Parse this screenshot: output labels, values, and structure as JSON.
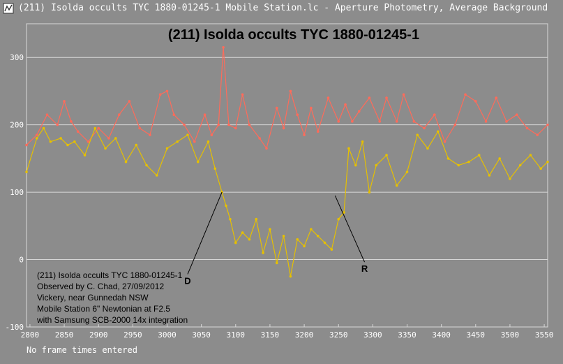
{
  "window": {
    "title": "(211) Isolda occults TYC 1880-01245-1 Mobile Station.lc - Aperture Photometry, Average Background",
    "icon": "lightcurve-app-icon"
  },
  "footer": {
    "status": "No frame times entered"
  },
  "colors": {
    "background": "#8c8c8c",
    "grid": "#d8d8d8",
    "target": "#e6c000",
    "comparison": "#ff6b5a",
    "comparison_clipped": "#b0b0b0",
    "text": "#000000",
    "axis_text": "#ffffff"
  },
  "chart_data": {
    "type": "line",
    "title": "(211) Isolda occults TYC 1880-01245-1",
    "xlabel": "",
    "ylabel": "",
    "xlim": [
      2795,
      3555
    ],
    "ylim": [
      -100,
      350
    ],
    "x_ticks": [
      2800,
      2850,
      2900,
      2950,
      3000,
      3050,
      3100,
      3150,
      3200,
      3250,
      3300,
      3350,
      3400,
      3450,
      3500,
      3550
    ],
    "y_ticks": [
      -100,
      0,
      100,
      200,
      300
    ],
    "grid": true,
    "series": [
      {
        "key": "comparison",
        "color": "#ff6b5a",
        "segments": [
          [
            2795,
            170
          ],
          [
            2810,
            185
          ],
          [
            2825,
            215
          ],
          [
            2840,
            200
          ],
          [
            2850,
            235
          ],
          [
            2860,
            205
          ],
          [
            2870,
            190
          ],
          [
            2885,
            175
          ],
          [
            2900,
            195
          ],
          [
            2915,
            180
          ],
          [
            2930,
            215
          ],
          [
            2945,
            235
          ],
          [
            2960,
            195
          ],
          [
            2975,
            185
          ],
          [
            2990,
            245
          ],
          [
            3000,
            250
          ],
          [
            3010,
            215
          ],
          [
            3025,
            200
          ],
          [
            3040,
            175
          ],
          [
            3055,
            215
          ],
          [
            3065,
            185
          ],
          [
            3075,
            200
          ],
          [
            3082,
            315
          ],
          [
            3090,
            200
          ],
          [
            3100,
            195
          ],
          [
            3110,
            245
          ],
          [
            3120,
            200
          ],
          [
            3135,
            180
          ],
          [
            3145,
            165
          ],
          [
            3160,
            225
          ],
          [
            3170,
            195
          ],
          [
            3180,
            250
          ],
          [
            3190,
            215
          ],
          [
            3200,
            185
          ],
          [
            3210,
            225
          ],
          [
            3220,
            190
          ],
          [
            3235,
            240
          ],
          [
            3250,
            205
          ],
          [
            3260,
            230
          ],
          [
            3270,
            205
          ],
          [
            3280,
            220
          ],
          [
            3295,
            240
          ],
          [
            3310,
            205
          ],
          [
            3320,
            240
          ],
          [
            3335,
            205
          ],
          [
            3345,
            245
          ],
          [
            3360,
            205
          ],
          [
            3375,
            195
          ],
          [
            3390,
            215
          ],
          [
            3405,
            175
          ],
          [
            3420,
            200
          ],
          [
            3435,
            245
          ],
          [
            3450,
            235
          ],
          [
            3465,
            205
          ],
          [
            3480,
            240
          ],
          [
            3495,
            205
          ],
          [
            3510,
            215
          ],
          [
            3525,
            195
          ],
          [
            3540,
            185
          ],
          [
            3555,
            200
          ]
        ]
      },
      {
        "key": "target",
        "color": "#e6c000",
        "segments": [
          [
            2795,
            130
          ],
          [
            2810,
            180
          ],
          [
            2820,
            195
          ],
          [
            2830,
            175
          ],
          [
            2845,
            180
          ],
          [
            2855,
            170
          ],
          [
            2865,
            175
          ],
          [
            2880,
            155
          ],
          [
            2895,
            195
          ],
          [
            2910,
            165
          ],
          [
            2925,
            180
          ],
          [
            2940,
            145
          ],
          [
            2955,
            170
          ],
          [
            2970,
            140
          ],
          [
            2985,
            125
          ],
          [
            3000,
            165
          ],
          [
            3015,
            175
          ],
          [
            3030,
            185
          ],
          [
            3045,
            145
          ],
          [
            3060,
            175
          ],
          [
            3070,
            135
          ],
          [
            3080,
            100
          ],
          [
            3086,
            80
          ],
          [
            3092,
            60
          ],
          [
            3100,
            25
          ],
          [
            3110,
            40
          ],
          [
            3120,
            30
          ],
          [
            3130,
            60
          ],
          [
            3140,
            10
          ],
          [
            3150,
            45
          ],
          [
            3160,
            -5
          ],
          [
            3170,
            35
          ],
          [
            3180,
            -25
          ],
          [
            3190,
            30
          ],
          [
            3200,
            20
          ],
          [
            3210,
            45
          ],
          [
            3220,
            35
          ],
          [
            3230,
            25
          ],
          [
            3240,
            15
          ],
          [
            3250,
            60
          ],
          [
            3258,
            70
          ],
          [
            3265,
            165
          ],
          [
            3275,
            140
          ],
          [
            3285,
            175
          ],
          [
            3295,
            100
          ],
          [
            3305,
            140
          ],
          [
            3320,
            155
          ],
          [
            3335,
            110
          ],
          [
            3350,
            130
          ],
          [
            3365,
            185
          ],
          [
            3380,
            165
          ],
          [
            3395,
            190
          ],
          [
            3410,
            150
          ],
          [
            3425,
            140
          ],
          [
            3440,
            145
          ],
          [
            3455,
            155
          ],
          [
            3470,
            125
          ],
          [
            3485,
            150
          ],
          [
            3500,
            120
          ],
          [
            3515,
            140
          ],
          [
            3530,
            155
          ],
          [
            3545,
            135
          ],
          [
            3555,
            145
          ]
        ]
      }
    ],
    "annotations": [
      {
        "label": "D",
        "x": 3080,
        "y": 100,
        "text_x": 3030,
        "text_y": -30
      },
      {
        "label": "R",
        "x": 3245,
        "y": 95,
        "text_x": 3288,
        "text_y": -12
      }
    ],
    "info_lines": [
      "(211) Isolda occults TYC 1880-01245-1",
      "Observed by C. Chad, 27/09/2012",
      "Vickery, near Gunnedah NSW",
      "Mobile Station 6\" Newtonian at F2.5",
      "with Samsung SCB-2000 14x integration"
    ]
  }
}
